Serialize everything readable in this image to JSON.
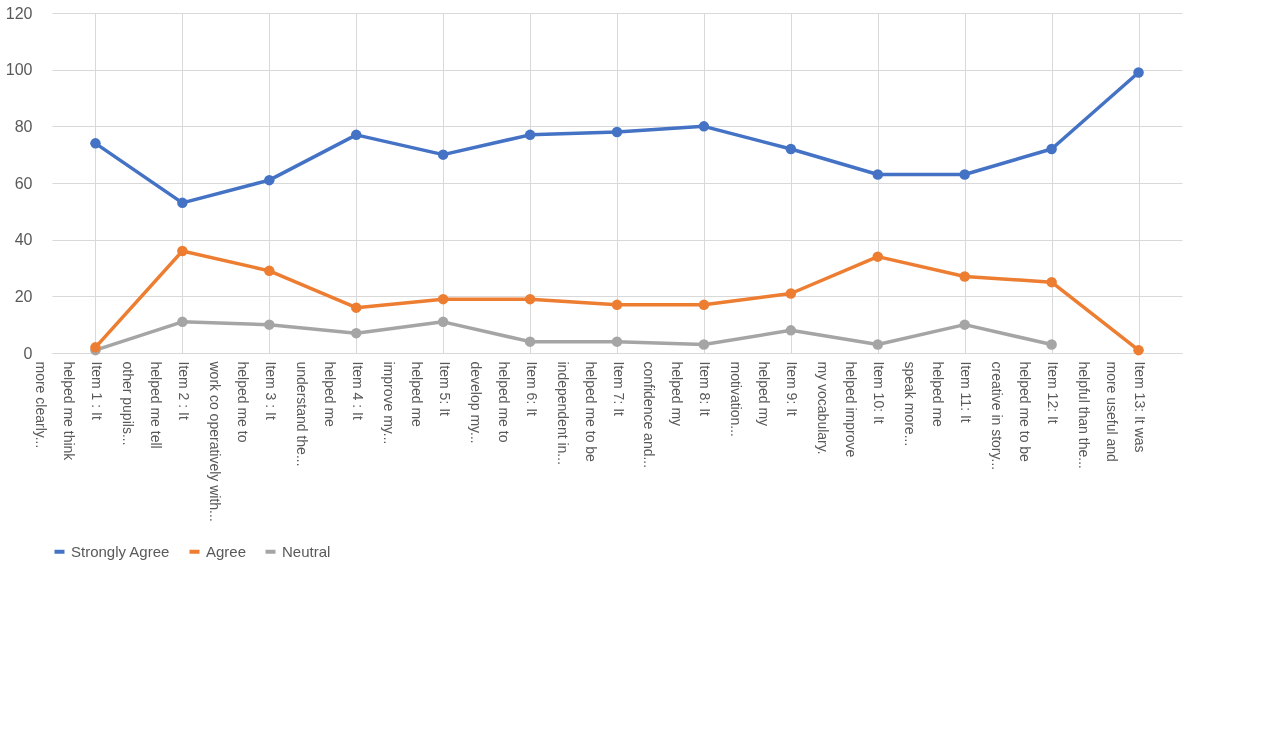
{
  "chart_data": {
    "type": "line",
    "categories": [
      "Item 1 : It\nhelped me think\nmore clearly...",
      "Item 2 : It\nhelped me tell\nother pupils...",
      "Item 3 : It\nhelped me to\nwork co  operatively with...",
      "Item 4 : It\nhelped me\nunderstand the...",
      "Item 5: It\nhelped me\nimprove my...",
      "Item 6: It\nhelped me to\ndevelop my...",
      "Item 7: It\nhelped me to be\nindependent in...",
      "Item 8: It\nhelped my\nconfidence and...",
      "Item 9: It\nhelped my\nmotivation...",
      "Item 10: It\nhelped improve\nmy vocabulary.",
      "Item 11: It\nhelped me\nspeak more...",
      "Item 12: It\nhelped me to be\ncreative in story...",
      "Item 13: It was\nmore useful and\nhelpful than the..."
    ],
    "series": [
      {
        "name": "Strongly Agree",
        "color": "#4472c4",
        "values": [
          74,
          53,
          61,
          77,
          70,
          77,
          78,
          80,
          72,
          63,
          63,
          72,
          99
        ]
      },
      {
        "name": "Agree",
        "color": "#ed7d31",
        "values": [
          2,
          36,
          29,
          16,
          19,
          19,
          17,
          17,
          21,
          34,
          27,
          25,
          1
        ]
      },
      {
        "name": "Neutral",
        "color": "#a5a5a5",
        "values": [
          1,
          11,
          10,
          7,
          11,
          4,
          4,
          3,
          8,
          3,
          10,
          3,
          null
        ]
      }
    ],
    "ylim": [
      0,
      120
    ],
    "yticks": [
      0,
      20,
      40,
      60,
      80,
      100,
      120
    ],
    "grid": true,
    "legend": "bottom",
    "marker": "circle",
    "line_style": "solid"
  }
}
